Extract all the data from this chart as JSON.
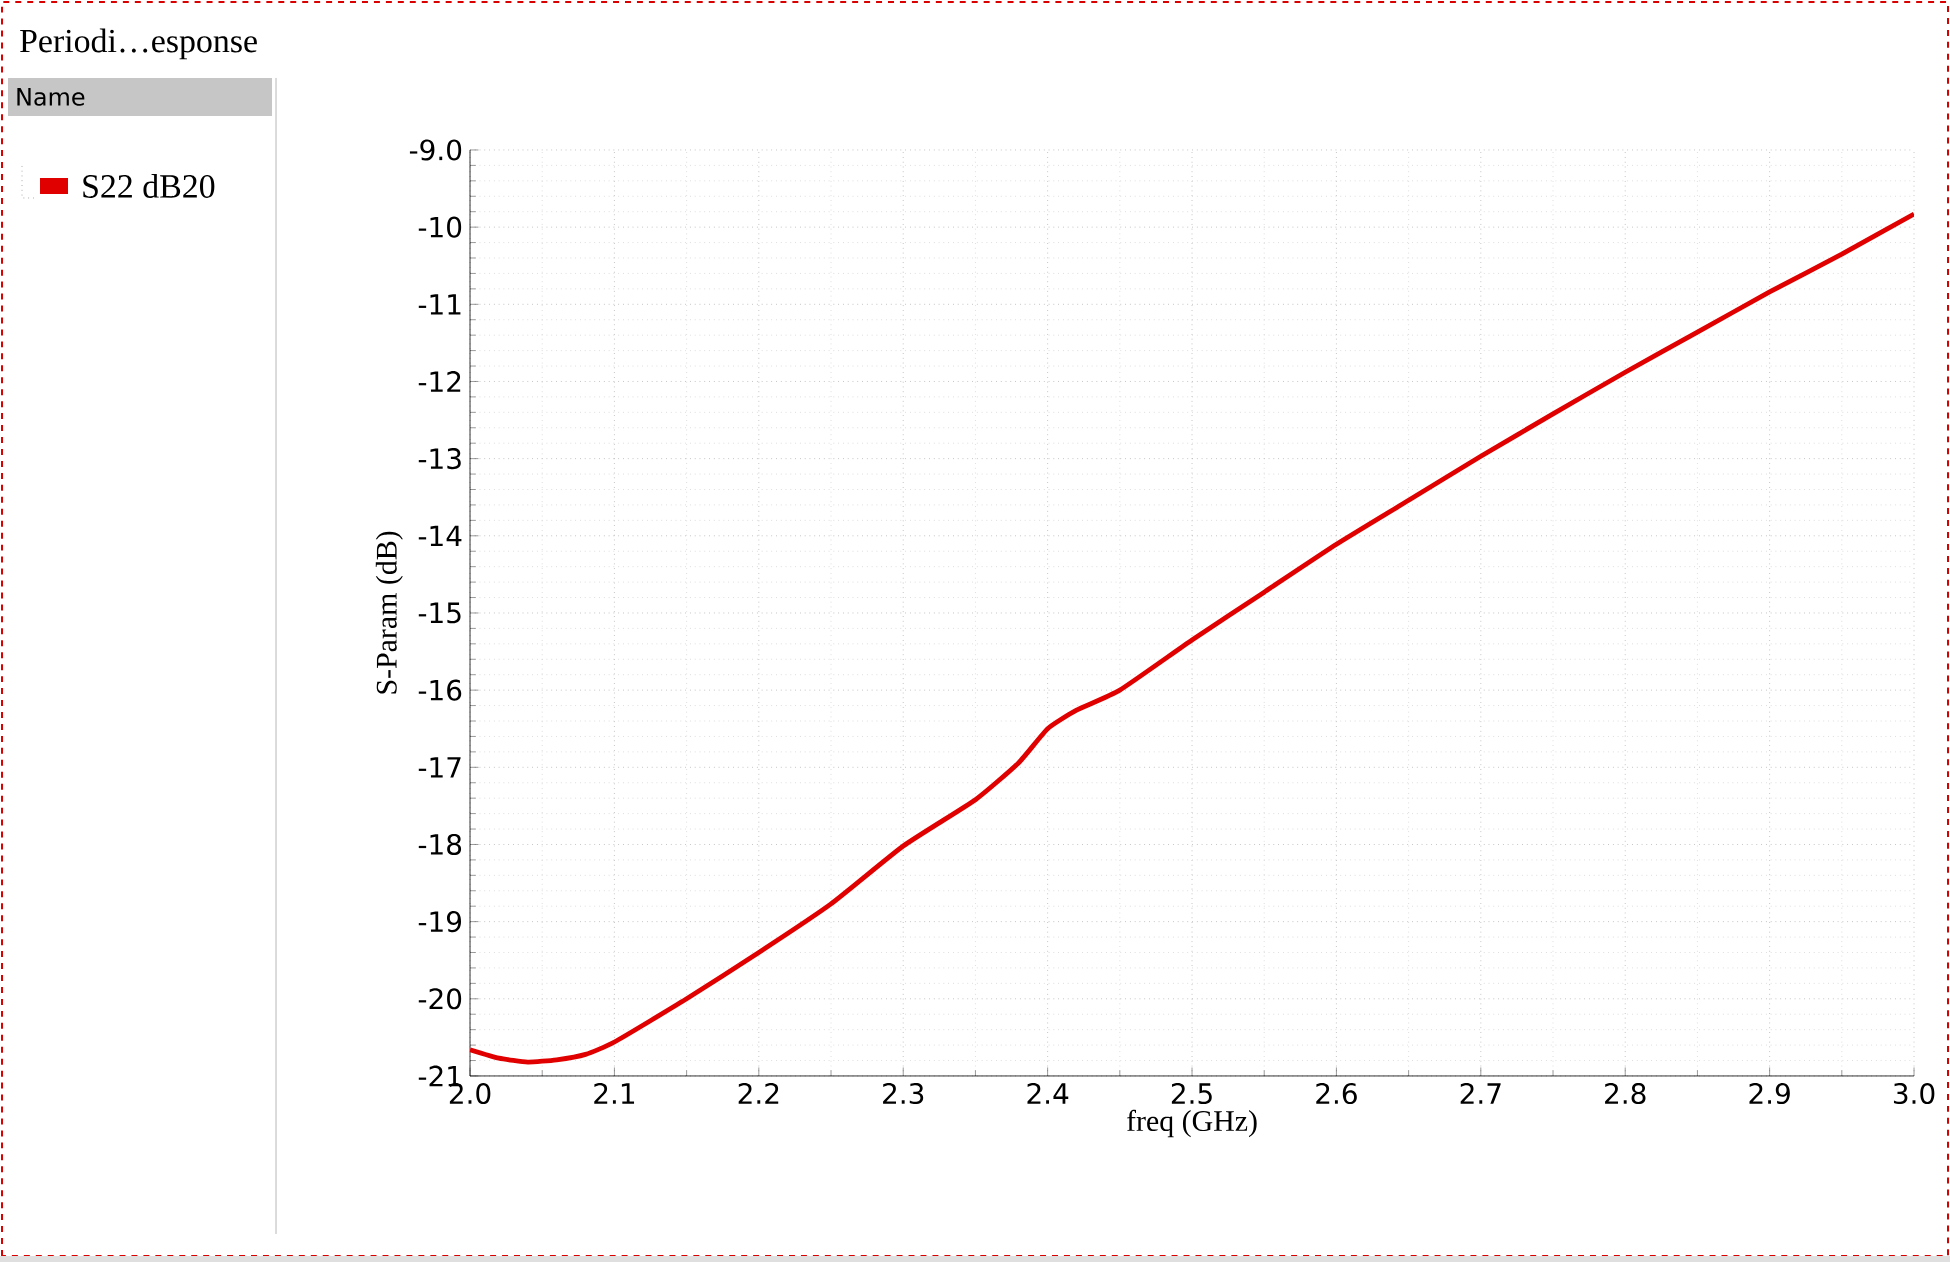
{
  "chart_data": {
    "type": "line",
    "title": "Periodi…esponse",
    "xlabel": "freq (GHz)",
    "ylabel": "S-Param (dB)",
    "annotations": [
      "Name"
    ],
    "x": [
      2.0,
      2.02,
      2.04,
      2.06,
      2.08,
      2.1,
      2.15,
      2.2,
      2.25,
      2.3,
      2.35,
      2.38,
      2.4,
      2.42,
      2.45,
      2.5,
      2.55,
      2.6,
      2.65,
      2.7,
      2.75,
      2.8,
      2.85,
      2.9,
      2.95,
      3.0
    ],
    "series": [
      {
        "name": "S22 dB20",
        "color": "#e00000",
        "values": [
          -20.66,
          -20.77,
          -20.82,
          -20.79,
          -20.72,
          -20.56,
          -20.0,
          -19.4,
          -18.77,
          -18.02,
          -17.42,
          -16.94,
          -16.5,
          -16.26,
          -16.0,
          -15.35,
          -14.73,
          -14.11,
          -13.54,
          -12.97,
          -12.42,
          -11.88,
          -11.36,
          -10.84,
          -10.35,
          -9.83
        ]
      }
    ],
    "xlim": [
      2.0,
      3.0
    ],
    "ylim": [
      -21,
      -9
    ],
    "xticks": [
      {
        "value": 2.0,
        "label": "2.0"
      },
      2.1,
      2.2,
      2.3,
      2.4,
      2.5,
      2.6,
      2.7,
      2.8,
      2.9,
      {
        "value": 3.0,
        "label": "3.0"
      }
    ],
    "yticks": [
      -21,
      -20,
      -19,
      -18,
      -17,
      -16,
      -15,
      -14,
      -13,
      -12,
      -11,
      -10,
      {
        "value": -9,
        "label": "-9.0"
      }
    ],
    "grid": true,
    "legend": "left",
    "marker": "none",
    "line_style": "solid"
  }
}
